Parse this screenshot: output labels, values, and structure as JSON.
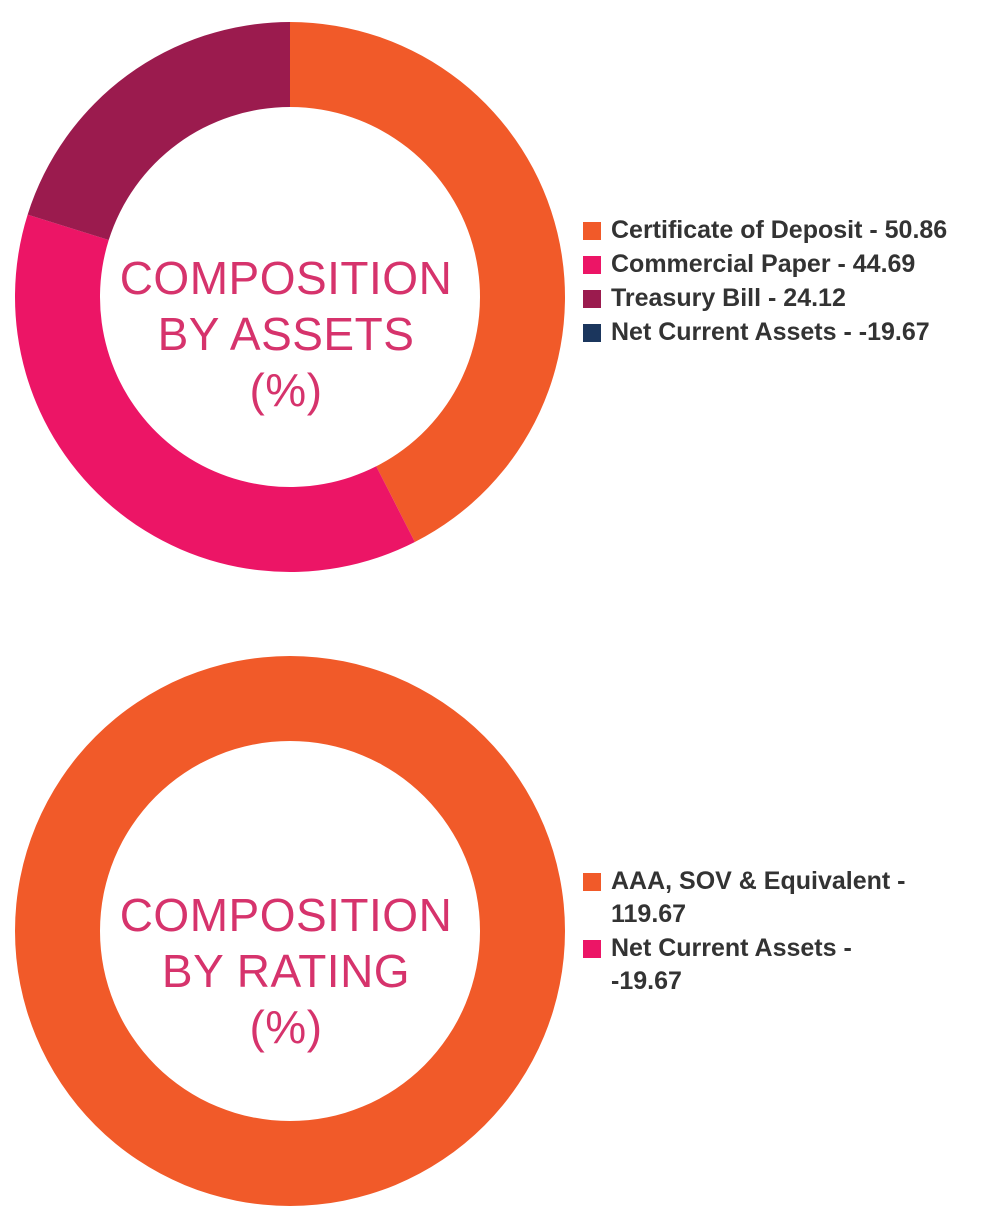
{
  "chart_data": [
    {
      "type": "pie",
      "title_lines": [
        "COMPOSITION",
        "BY ASSETS",
        "(%)"
      ],
      "categories": [
        "Certificate of Deposit",
        "Commercial Paper",
        "Treasury Bill",
        "Net Current Assets"
      ],
      "values": [
        50.86,
        44.69,
        24.12,
        -19.67
      ],
      "colors": [
        "#f15a29",
        "#ec1566",
        "#9b1b4e",
        "#1b365d"
      ],
      "legend": [
        {
          "label": "Certificate of Deposit - 50.86",
          "color": "#f15a29"
        },
        {
          "label": "Commercial Paper - 44.69",
          "color": "#ec1566"
        },
        {
          "label": "Treasury Bill - 24.12",
          "color": "#9b1b4e"
        },
        {
          "label": "Net Current Assets - -19.67",
          "color": "#1b365d"
        }
      ],
      "legend_position": "right"
    },
    {
      "type": "pie",
      "title_lines": [
        "COMPOSITION",
        "BY RATING",
        "(%)"
      ],
      "categories": [
        "AAA, SOV & Equivalent",
        "Net Current Assets"
      ],
      "values": [
        119.67,
        -19.67
      ],
      "colors": [
        "#f15a29",
        "#ec1566"
      ],
      "legend": [
        {
          "label": "AAA, SOV & Equivalent - 119.67",
          "color": "#f15a29"
        },
        {
          "label": "Net Current Assets - -19.67",
          "color": "#ec1566"
        }
      ],
      "legend_position": "right"
    }
  ]
}
